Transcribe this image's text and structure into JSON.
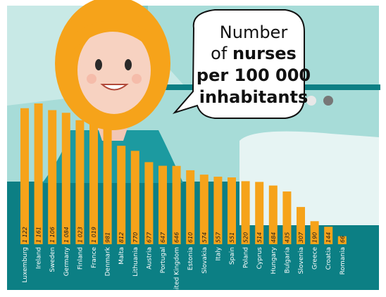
{
  "speech": {
    "line1": "Number",
    "line2_prefix": "of",
    "line2_bold": "nurses",
    "line3": "per 100 000",
    "line4": "inhabitants"
  },
  "colors": {
    "teal_dark": "#0c7f84",
    "teal_light": "#a7dcd8",
    "bar": "#f6a31a",
    "label_text": "#ffffff",
    "value_text": "#1a1a1a"
  },
  "chart_data": {
    "type": "bar",
    "title": "Number of nurses per 100 000 inhabitants",
    "xlabel": "",
    "ylabel": "",
    "ylim": [
      0,
      1250
    ],
    "categories": [
      "Luxemburg",
      "Ireland",
      "Sweden",
      "Germany",
      "Finland",
      "France",
      "Denmark",
      "Malta",
      "Lithuania",
      "Austria",
      "Portugal",
      "United Kingdom",
      "Estonia",
      "Slovakia",
      "Italy",
      "Spain",
      "Poland",
      "Cyprus",
      "Hungary",
      "Bulgaria",
      "Slovenia",
      "Greece",
      "Croatia",
      "Romania"
    ],
    "values": [
      1122,
      1161,
      1106,
      1084,
      1023,
      1019,
      981,
      812,
      770,
      677,
      647,
      646,
      610,
      574,
      557,
      551,
      520,
      514,
      484,
      435,
      307,
      190,
      144,
      66
    ],
    "value_labels": [
      "1 122",
      "1 161",
      "1 106",
      "1 084",
      "1 023",
      "1 019",
      "981",
      "812",
      "770",
      "677",
      "647",
      "646",
      "610",
      "574",
      "557",
      "551",
      "520",
      "514",
      "484",
      "435",
      "307",
      "190",
      "144",
      "66"
    ],
    "grid": false,
    "legend": "none"
  }
}
